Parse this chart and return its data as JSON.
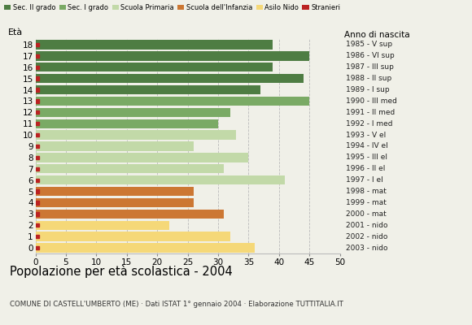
{
  "ages": [
    18,
    17,
    16,
    15,
    14,
    13,
    12,
    11,
    10,
    9,
    8,
    7,
    6,
    5,
    4,
    3,
    2,
    1,
    0
  ],
  "values": [
    39,
    45,
    39,
    44,
    37,
    45,
    32,
    30,
    33,
    26,
    35,
    31,
    41,
    26,
    26,
    31,
    22,
    32,
    36
  ],
  "right_labels": [
    "1985 - V sup",
    "1986 - VI sup",
    "1987 - III sup",
    "1988 - II sup",
    "1989 - I sup",
    "1990 - III med",
    "1991 - II med",
    "1992 - I med",
    "1993 - V el",
    "1994 - IV el",
    "1995 - III el",
    "1996 - II el",
    "1997 - I el",
    "1998 - mat",
    "1999 - mat",
    "2000 - mat",
    "2001 - nido",
    "2002 - nido",
    "2003 - nido"
  ],
  "bar_colors": [
    "#4e7d43",
    "#4e7d43",
    "#4e7d43",
    "#4e7d43",
    "#4e7d43",
    "#7aaa65",
    "#7aaa65",
    "#7aaa65",
    "#c2d9a8",
    "#c2d9a8",
    "#c2d9a8",
    "#c2d9a8",
    "#c2d9a8",
    "#cc7733",
    "#cc7733",
    "#cc7733",
    "#f5d878",
    "#f5d878",
    "#f5d878"
  ],
  "stranieri_color": "#bb2222",
  "legend_labels": [
    "Sec. II grado",
    "Sec. I grado",
    "Scuola Primaria",
    "Scuola dell'Infanzia",
    "Asilo Nido",
    "Stranieri"
  ],
  "legend_colors": [
    "#4e7d43",
    "#7aaa65",
    "#c2d9a8",
    "#cc7733",
    "#f5d878",
    "#bb2222"
  ],
  "title": "Popolazione per età scolastica - 2004",
  "subtitle": "COMUNE DI CASTELL'UMBERTO (ME) · Dati ISTAT 1° gennaio 2004 · Elaborazione TUTTITALIA.IT",
  "label_eta": "Età",
  "label_anno": "Anno di nascita",
  "xlim": [
    0,
    50
  ],
  "xticks": [
    0,
    5,
    10,
    15,
    20,
    25,
    30,
    35,
    40,
    45,
    50
  ],
  "bg_color": "#f0f0e8",
  "grid_color": "#bbbbbb",
  "bar_height": 0.82
}
